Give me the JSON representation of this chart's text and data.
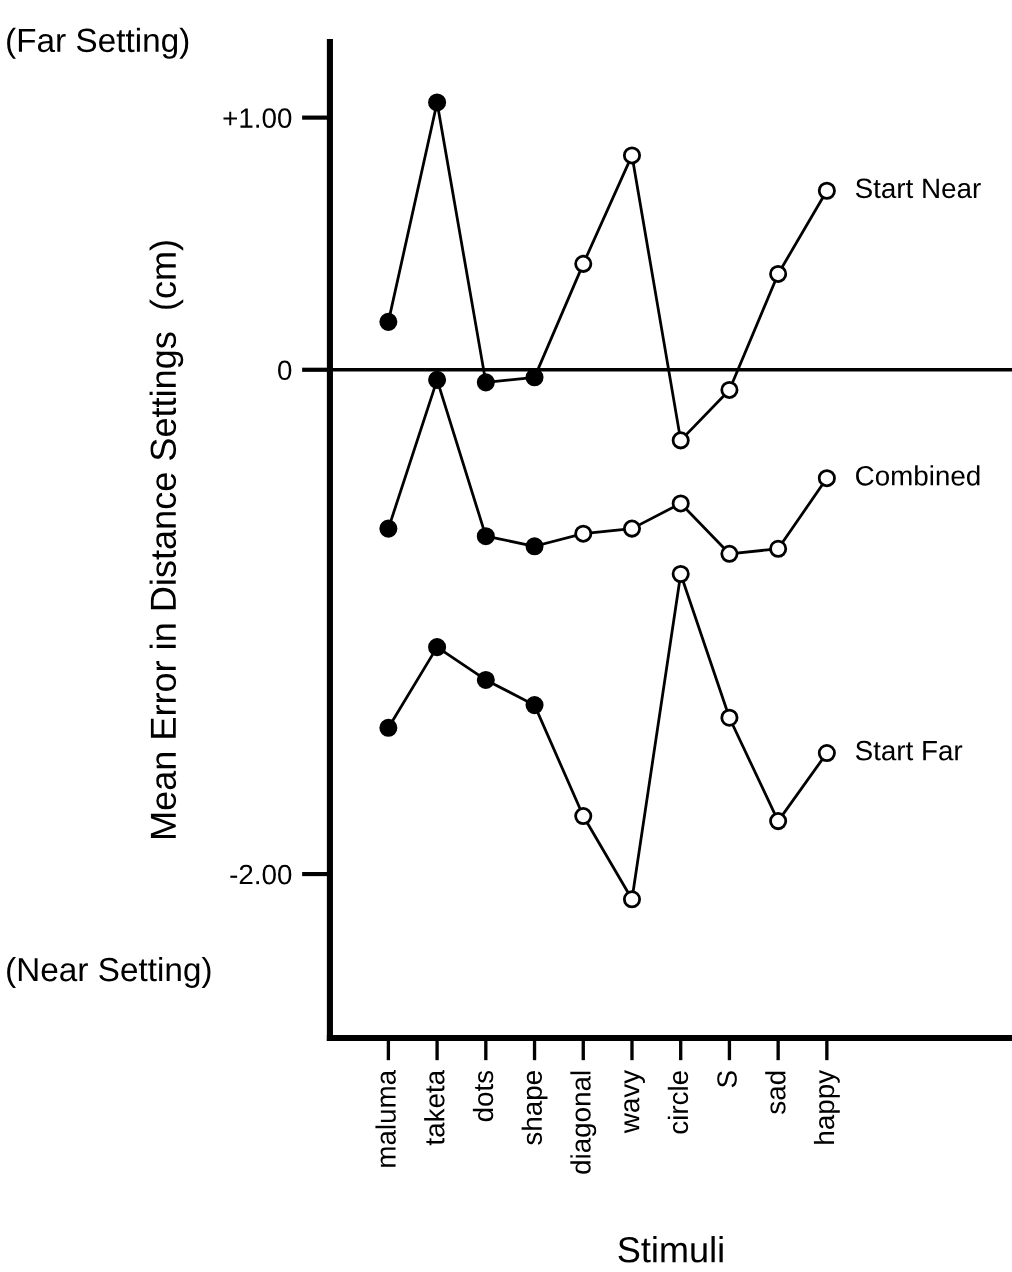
{
  "chart_data": {
    "type": "line",
    "xlabel": "Stimuli",
    "ylabel": "Mean Error in Distance Settings  (cm)",
    "annotations": [
      "(Far Setting)",
      "(Near Setting)"
    ],
    "categories": [
      "maluma",
      "taketa",
      "dots",
      "shape",
      "diagonal",
      "wavy",
      "circle",
      "S",
      "sad",
      "happy"
    ],
    "series": [
      {
        "name": "Start Near",
        "color": "#000000",
        "colors": [
          "#000000",
          "#000000",
          "#000000",
          "#000000",
          "#ffffff",
          "#ffffff",
          "#ffffff",
          "#ffffff",
          "#ffffff",
          "#ffffff"
        ],
        "values": [
          0.19,
          1.06,
          -0.05,
          -0.03,
          0.42,
          0.85,
          -0.28,
          -0.08,
          0.38,
          0.71
        ]
      },
      {
        "name": "Combined",
        "color": "#000000",
        "colors": [
          "#000000",
          "#000000",
          "#000000",
          "#000000",
          "#ffffff",
          "#ffffff",
          "#ffffff",
          "#ffffff",
          "#ffffff",
          "#ffffff"
        ],
        "values": [
          -0.63,
          -0.04,
          -0.66,
          -0.7,
          -0.65,
          -0.63,
          -0.53,
          -0.73,
          -0.71,
          -0.43
        ]
      },
      {
        "name": "Start Far",
        "color": "#000000",
        "colors": [
          "#000000",
          "#000000",
          "#000000",
          "#000000",
          "#ffffff",
          "#ffffff",
          "#ffffff",
          "#ffffff",
          "#ffffff",
          "#ffffff"
        ],
        "values": [
          -1.42,
          -1.1,
          -1.23,
          -1.33,
          -1.77,
          -2.1,
          -0.81,
          -1.38,
          -1.79,
          -1.52
        ]
      }
    ],
    "ylim": [
      -2.65,
      1.3
    ],
    "yticks": [
      {
        "value": 1.0,
        "label": "+1.00"
      },
      0,
      {
        "value": -2.0,
        "label": "-2.00"
      }
    ],
    "ref_lines": [
      {
        "axis": "y",
        "value": 0,
        "color": "#000000"
      }
    ],
    "marker": "circle",
    "line_style": "solid",
    "grid": false,
    "legend": false
  }
}
